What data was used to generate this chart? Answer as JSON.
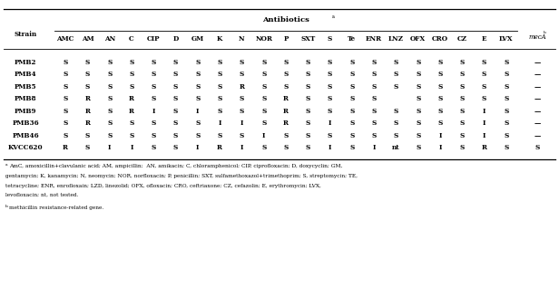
{
  "col_header": [
    "AMC",
    "AM",
    "AN",
    "C",
    "CIP",
    "D",
    "GM",
    "K",
    "N",
    "NOR",
    "P",
    "SXT",
    "S",
    "Te",
    "ENR",
    "LNZ",
    "OFX",
    "CRO",
    "CZ",
    "E",
    "LVX"
  ],
  "rows": [
    {
      "strain": "PMB2",
      "data": [
        "S",
        "S",
        "S",
        "S",
        "S",
        "S",
        "S",
        "S",
        "S",
        "S",
        "S",
        "S",
        "S",
        "S",
        "S",
        "S",
        "S",
        "S",
        "S",
        "S",
        "S"
      ],
      "mecA": "—"
    },
    {
      "strain": "PMB4",
      "data": [
        "S",
        "S",
        "S",
        "S",
        "S",
        "S",
        "S",
        "S",
        "S",
        "S",
        "S",
        "S",
        "S",
        "S",
        "S",
        "S",
        "S",
        "S",
        "S",
        "S",
        "S"
      ],
      "mecA": "—"
    },
    {
      "strain": "PMB5",
      "data": [
        "S",
        "S",
        "S",
        "S",
        "S",
        "S",
        "S",
        "S",
        "R",
        "S",
        "S",
        "S",
        "S",
        "S",
        "S",
        "S",
        "S",
        "S",
        "S",
        "S",
        "S"
      ],
      "mecA": "—"
    },
    {
      "strain": "PMB8",
      "data": [
        "S",
        "R",
        "S",
        "R",
        "S",
        "S",
        "S",
        "S",
        "S",
        "S",
        "R",
        "S",
        "S",
        "S",
        "S",
        "",
        "S",
        "S",
        "S",
        "S",
        "S"
      ],
      "mecA": "—"
    },
    {
      "strain": "PMB9",
      "data": [
        "S",
        "R",
        "S",
        "R",
        "I",
        "S",
        "I",
        "S",
        "S",
        "S",
        "R",
        "S",
        "S",
        "S",
        "S",
        "S",
        "S",
        "S",
        "S",
        "I",
        "S"
      ],
      "mecA": "—"
    },
    {
      "strain": "PMB36",
      "data": [
        "S",
        "R",
        "S",
        "S",
        "S",
        "S",
        "S",
        "I",
        "I",
        "S",
        "R",
        "S",
        "I",
        "S",
        "S",
        "S",
        "S",
        "S",
        "S",
        "I",
        "S"
      ],
      "mecA": "—"
    },
    {
      "strain": "PMB46",
      "data": [
        "S",
        "S",
        "S",
        "S",
        "S",
        "S",
        "S",
        "S",
        "S",
        "I",
        "S",
        "S",
        "S",
        "S",
        "S",
        "S",
        "S",
        "I",
        "S",
        "I",
        "S"
      ],
      "mecA": "—"
    },
    {
      "strain": "KVCC620",
      "data": [
        "R",
        "S",
        "I",
        "I",
        "S",
        "S",
        "I",
        "R",
        "I",
        "S",
        "S",
        "S",
        "I",
        "S",
        "I",
        "nt",
        "S",
        "I",
        "S",
        "R",
        "S"
      ],
      "mecA": "S"
    }
  ],
  "footnote_a_lines": [
    "a AmC, amoxicillin+clavulanic acid; AM, ampicillin;  AN, amikacin; C, chloramphenicol; CIP, ciprofloxacin; D, doxycyclin; GM,",
    "gentamycin; K, kanamycin; N, neomycin; NOR, norfloxacin; P, penicillin; SXT, sulfamethoxazol+trimethoprim; S, streptomycin; TE,",
    "tetracycline; ENR, enrofloxain; LZD, linezolid; OFX, ofloxacin; CRO, ceftriaxone; CZ, cefazolin; E, erythromycin; LVX,",
    "levofloxacin; nt, not tested."
  ],
  "footnote_b": "b methicillin resistance-related gene.",
  "bg_color": "#ffffff",
  "text_color": "#000000",
  "figsize": [
    6.16,
    3.38
  ],
  "dpi": 100
}
